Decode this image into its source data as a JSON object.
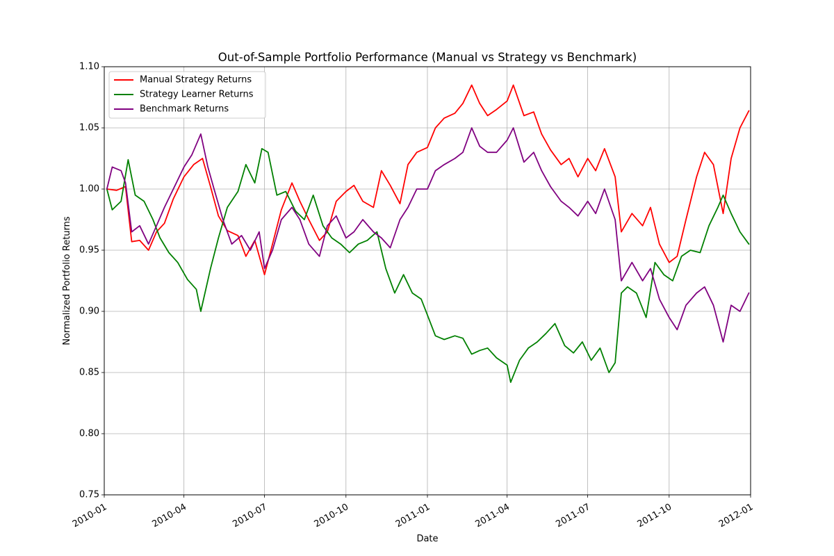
{
  "chart_data": {
    "type": "line",
    "title": "Out-of-Sample Portfolio Performance (Manual vs Strategy vs Benchmark)",
    "xlabel": "Date",
    "ylabel": "Normalized Portfolio Returns",
    "xlim": [
      "2010-01-01",
      "2012-01-01"
    ],
    "ylim": [
      0.75,
      1.1
    ],
    "x_ticks": [
      "2010-01",
      "2010-04",
      "2010-07",
      "2010-10",
      "2011-01",
      "2011-04",
      "2011-07",
      "2011-10",
      "2012-01"
    ],
    "y_ticks": [
      "0.75",
      "0.80",
      "0.85",
      "0.90",
      "0.95",
      "1.00",
      "1.05",
      "1.10"
    ],
    "grid": true,
    "legend_position": "top-left",
    "series": [
      {
        "name": "Manual Strategy Returns",
        "color": "#ff0000",
        "points": [
          [
            "2010-01-04",
            1.0
          ],
          [
            "2010-01-15",
            0.999
          ],
          [
            "2010-01-25",
            1.002
          ],
          [
            "2010-02-01",
            0.957
          ],
          [
            "2010-02-10",
            0.958
          ],
          [
            "2010-02-20",
            0.95
          ],
          [
            "2010-03-01",
            0.965
          ],
          [
            "2010-03-10",
            0.972
          ],
          [
            "2010-03-20",
            0.992
          ],
          [
            "2010-04-01",
            1.01
          ],
          [
            "2010-04-12",
            1.02
          ],
          [
            "2010-04-22",
            1.025
          ],
          [
            "2010-05-01",
            1.002
          ],
          [
            "2010-05-10",
            0.978
          ],
          [
            "2010-05-20",
            0.966
          ],
          [
            "2010-06-01",
            0.962
          ],
          [
            "2010-06-10",
            0.945
          ],
          [
            "2010-06-20",
            0.958
          ],
          [
            "2010-07-01",
            0.93
          ],
          [
            "2010-07-10",
            0.955
          ],
          [
            "2010-07-20",
            0.983
          ],
          [
            "2010-08-01",
            1.005
          ],
          [
            "2010-08-10",
            0.99
          ],
          [
            "2010-08-20",
            0.975
          ],
          [
            "2010-09-01",
            0.958
          ],
          [
            "2010-09-10",
            0.965
          ],
          [
            "2010-09-20",
            0.99
          ],
          [
            "2010-10-01",
            0.998
          ],
          [
            "2010-10-10",
            1.003
          ],
          [
            "2010-10-20",
            0.99
          ],
          [
            "2010-11-01",
            0.985
          ],
          [
            "2010-11-10",
            1.015
          ],
          [
            "2010-11-20",
            1.003
          ],
          [
            "2010-12-01",
            0.988
          ],
          [
            "2010-12-10",
            1.02
          ],
          [
            "2010-12-20",
            1.03
          ],
          [
            "2011-01-01",
            1.034
          ],
          [
            "2011-01-10",
            1.05
          ],
          [
            "2011-01-20",
            1.058
          ],
          [
            "2011-02-01",
            1.062
          ],
          [
            "2011-02-10",
            1.07
          ],
          [
            "2011-02-20",
            1.085
          ],
          [
            "2011-03-01",
            1.07
          ],
          [
            "2011-03-10",
            1.06
          ],
          [
            "2011-03-20",
            1.065
          ],
          [
            "2011-04-01",
            1.072
          ],
          [
            "2011-04-08",
            1.085
          ],
          [
            "2011-04-20",
            1.06
          ],
          [
            "2011-05-01",
            1.063
          ],
          [
            "2011-05-10",
            1.045
          ],
          [
            "2011-05-20",
            1.032
          ],
          [
            "2011-06-01",
            1.02
          ],
          [
            "2011-06-10",
            1.025
          ],
          [
            "2011-06-20",
            1.01
          ],
          [
            "2011-07-01",
            1.025
          ],
          [
            "2011-07-10",
            1.015
          ],
          [
            "2011-07-20",
            1.033
          ],
          [
            "2011-08-01",
            1.01
          ],
          [
            "2011-08-08",
            0.965
          ],
          [
            "2011-08-20",
            0.98
          ],
          [
            "2011-09-01",
            0.97
          ],
          [
            "2011-09-10",
            0.985
          ],
          [
            "2011-09-20",
            0.955
          ],
          [
            "2011-10-01",
            0.94
          ],
          [
            "2011-10-10",
            0.945
          ],
          [
            "2011-10-20",
            0.975
          ],
          [
            "2011-11-01",
            1.01
          ],
          [
            "2011-11-10",
            1.03
          ],
          [
            "2011-11-20",
            1.02
          ],
          [
            "2011-12-01",
            0.98
          ],
          [
            "2011-12-10",
            1.025
          ],
          [
            "2011-12-20",
            1.05
          ],
          [
            "2011-12-30",
            1.064
          ]
        ]
      },
      {
        "name": "Strategy Learner Returns",
        "color": "#008000",
        "points": [
          [
            "2010-01-04",
            1.0
          ],
          [
            "2010-01-10",
            0.983
          ],
          [
            "2010-01-20",
            0.99
          ],
          [
            "2010-01-28",
            1.024
          ],
          [
            "2010-02-05",
            0.995
          ],
          [
            "2010-02-15",
            0.99
          ],
          [
            "2010-02-25",
            0.975
          ],
          [
            "2010-03-05",
            0.96
          ],
          [
            "2010-03-15",
            0.948
          ],
          [
            "2010-03-25",
            0.94
          ],
          [
            "2010-04-05",
            0.926
          ],
          [
            "2010-04-15",
            0.918
          ],
          [
            "2010-04-20",
            0.9
          ],
          [
            "2010-05-01",
            0.935
          ],
          [
            "2010-05-10",
            0.96
          ],
          [
            "2010-05-20",
            0.985
          ],
          [
            "2010-06-01",
            0.998
          ],
          [
            "2010-06-10",
            1.02
          ],
          [
            "2010-06-20",
            1.005
          ],
          [
            "2010-06-28",
            1.033
          ],
          [
            "2010-07-05",
            1.03
          ],
          [
            "2010-07-15",
            0.995
          ],
          [
            "2010-07-25",
            0.998
          ],
          [
            "2010-08-05",
            0.982
          ],
          [
            "2010-08-15",
            0.975
          ],
          [
            "2010-08-25",
            0.995
          ],
          [
            "2010-09-05",
            0.97
          ],
          [
            "2010-09-15",
            0.96
          ],
          [
            "2010-09-25",
            0.955
          ],
          [
            "2010-10-05",
            0.948
          ],
          [
            "2010-10-15",
            0.955
          ],
          [
            "2010-10-25",
            0.958
          ],
          [
            "2010-11-05",
            0.965
          ],
          [
            "2010-11-15",
            0.935
          ],
          [
            "2010-11-25",
            0.915
          ],
          [
            "2010-12-05",
            0.93
          ],
          [
            "2010-12-15",
            0.915
          ],
          [
            "2010-12-25",
            0.91
          ],
          [
            "2011-01-01",
            0.897
          ],
          [
            "2011-01-10",
            0.88
          ],
          [
            "2011-01-20",
            0.877
          ],
          [
            "2011-02-01",
            0.88
          ],
          [
            "2011-02-10",
            0.878
          ],
          [
            "2011-02-20",
            0.865
          ],
          [
            "2011-03-01",
            0.868
          ],
          [
            "2011-03-10",
            0.87
          ],
          [
            "2011-03-20",
            0.862
          ],
          [
            "2011-04-01",
            0.856
          ],
          [
            "2011-04-05",
            0.842
          ],
          [
            "2011-04-15",
            0.86
          ],
          [
            "2011-04-25",
            0.87
          ],
          [
            "2011-05-05",
            0.875
          ],
          [
            "2011-05-15",
            0.882
          ],
          [
            "2011-05-25",
            0.89
          ],
          [
            "2011-06-05",
            0.872
          ],
          [
            "2011-06-15",
            0.866
          ],
          [
            "2011-06-25",
            0.875
          ],
          [
            "2011-07-05",
            0.86
          ],
          [
            "2011-07-15",
            0.87
          ],
          [
            "2011-07-25",
            0.85
          ],
          [
            "2011-08-01",
            0.858
          ],
          [
            "2011-08-08",
            0.915
          ],
          [
            "2011-08-15",
            0.92
          ],
          [
            "2011-08-25",
            0.915
          ],
          [
            "2011-09-05",
            0.895
          ],
          [
            "2011-09-15",
            0.94
          ],
          [
            "2011-09-25",
            0.93
          ],
          [
            "2011-10-05",
            0.925
          ],
          [
            "2011-10-15",
            0.945
          ],
          [
            "2011-10-25",
            0.95
          ],
          [
            "2011-11-05",
            0.948
          ],
          [
            "2011-11-15",
            0.97
          ],
          [
            "2011-11-25",
            0.985
          ],
          [
            "2011-12-01",
            0.995
          ],
          [
            "2011-12-10",
            0.98
          ],
          [
            "2011-12-20",
            0.965
          ],
          [
            "2011-12-30",
            0.955
          ]
        ]
      },
      {
        "name": "Benchmark Returns",
        "color": "#800080",
        "points": [
          [
            "2010-01-04",
            1.0
          ],
          [
            "2010-01-10",
            1.018
          ],
          [
            "2010-01-20",
            1.015
          ],
          [
            "2010-01-25",
            1.005
          ],
          [
            "2010-02-01",
            0.965
          ],
          [
            "2010-02-10",
            0.97
          ],
          [
            "2010-02-20",
            0.955
          ],
          [
            "2010-03-01",
            0.97
          ],
          [
            "2010-03-10",
            0.985
          ],
          [
            "2010-03-20",
            1.0
          ],
          [
            "2010-04-01",
            1.018
          ],
          [
            "2010-04-10",
            1.028
          ],
          [
            "2010-04-20",
            1.045
          ],
          [
            "2010-04-28",
            1.018
          ],
          [
            "2010-05-05",
            1.0
          ],
          [
            "2010-05-15",
            0.975
          ],
          [
            "2010-05-25",
            0.955
          ],
          [
            "2010-06-05",
            0.962
          ],
          [
            "2010-06-15",
            0.95
          ],
          [
            "2010-06-25",
            0.965
          ],
          [
            "2010-07-01",
            0.935
          ],
          [
            "2010-07-10",
            0.95
          ],
          [
            "2010-07-20",
            0.975
          ],
          [
            "2010-08-01",
            0.985
          ],
          [
            "2010-08-10",
            0.975
          ],
          [
            "2010-08-20",
            0.955
          ],
          [
            "2010-09-01",
            0.945
          ],
          [
            "2010-09-10",
            0.97
          ],
          [
            "2010-09-20",
            0.978
          ],
          [
            "2010-10-01",
            0.96
          ],
          [
            "2010-10-10",
            0.965
          ],
          [
            "2010-10-20",
            0.975
          ],
          [
            "2010-11-01",
            0.965
          ],
          [
            "2010-11-10",
            0.96
          ],
          [
            "2010-11-20",
            0.952
          ],
          [
            "2010-12-01",
            0.975
          ],
          [
            "2010-12-10",
            0.985
          ],
          [
            "2010-12-20",
            1.0
          ],
          [
            "2011-01-01",
            1.0
          ],
          [
            "2011-01-10",
            1.015
          ],
          [
            "2011-01-20",
            1.02
          ],
          [
            "2011-02-01",
            1.025
          ],
          [
            "2011-02-10",
            1.03
          ],
          [
            "2011-02-20",
            1.05
          ],
          [
            "2011-03-01",
            1.035
          ],
          [
            "2011-03-10",
            1.03
          ],
          [
            "2011-03-20",
            1.03
          ],
          [
            "2011-04-01",
            1.04
          ],
          [
            "2011-04-08",
            1.05
          ],
          [
            "2011-04-20",
            1.022
          ],
          [
            "2011-05-01",
            1.03
          ],
          [
            "2011-05-10",
            1.015
          ],
          [
            "2011-05-20",
            1.002
          ],
          [
            "2011-06-01",
            0.99
          ],
          [
            "2011-06-10",
            0.985
          ],
          [
            "2011-06-20",
            0.978
          ],
          [
            "2011-07-01",
            0.99
          ],
          [
            "2011-07-10",
            0.98
          ],
          [
            "2011-07-20",
            1.0
          ],
          [
            "2011-08-01",
            0.975
          ],
          [
            "2011-08-08",
            0.925
          ],
          [
            "2011-08-20",
            0.94
          ],
          [
            "2011-09-01",
            0.925
          ],
          [
            "2011-09-10",
            0.935
          ],
          [
            "2011-09-20",
            0.91
          ],
          [
            "2011-10-01",
            0.895
          ],
          [
            "2011-10-10",
            0.885
          ],
          [
            "2011-10-20",
            0.905
          ],
          [
            "2011-11-01",
            0.915
          ],
          [
            "2011-11-10",
            0.92
          ],
          [
            "2011-11-20",
            0.905
          ],
          [
            "2011-12-01",
            0.875
          ],
          [
            "2011-12-10",
            0.905
          ],
          [
            "2011-12-20",
            0.9
          ],
          [
            "2011-12-30",
            0.915
          ]
        ]
      }
    ]
  }
}
